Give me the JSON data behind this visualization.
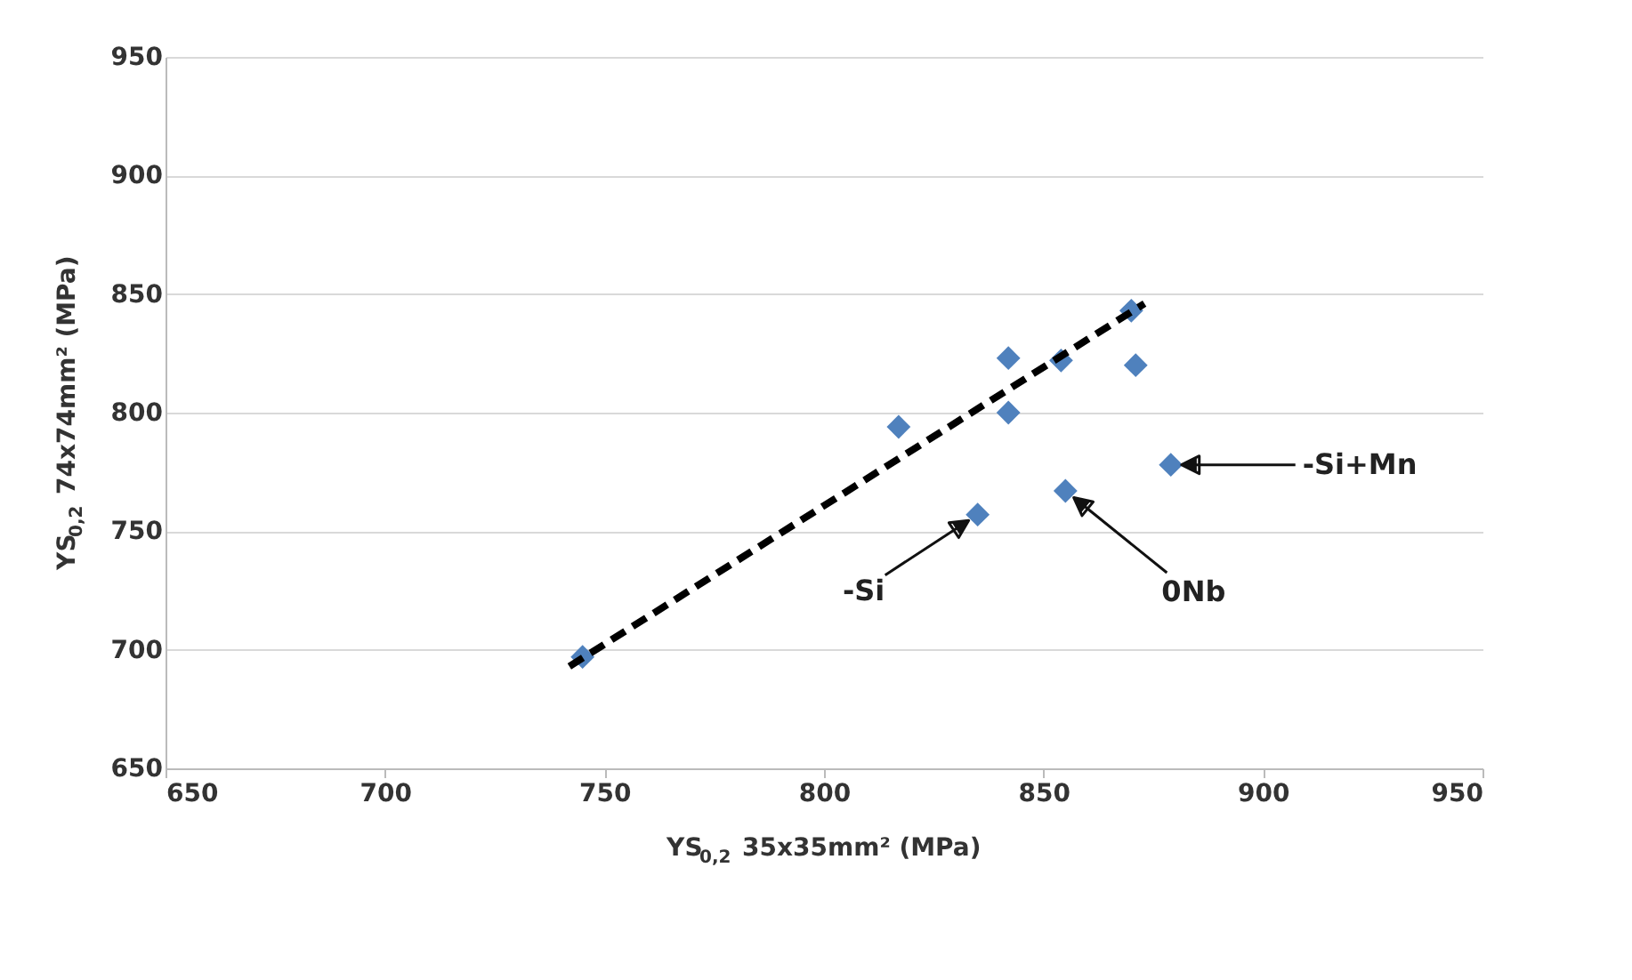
{
  "chart_data": {
    "type": "scatter",
    "xlabel": "YS$_{0,2}$ 35x35mm² (MPa)",
    "ylabel": "YS$_{0,2}$ 74x74mm² (MPa)",
    "xlim": [
      650,
      950
    ],
    "xticks": [
      650,
      700,
      750,
      800,
      850,
      900,
      950
    ],
    "ylim": [
      650,
      950
    ],
    "yticks": [
      650,
      700,
      750,
      800,
      850,
      900,
      950
    ],
    "grid": "y",
    "marker": "diamond",
    "series": [
      {
        "type": "scatter",
        "color": "#4f81bd",
        "x": [
          745,
          817,
          842,
          842,
          854,
          870,
          871,
          879,
          855,
          835
        ],
        "values": [
          697,
          794,
          823,
          800,
          822,
          843,
          820,
          778,
          767,
          757
        ]
      },
      {
        "type": "line",
        "color": "#000000",
        "line_style": "dashed",
        "marker": "none",
        "x": [
          742,
          873
        ],
        "values": [
          693,
          846
        ]
      }
    ],
    "annotations": [
      {
        "text": "-Si",
        "x": 835,
        "y": 757
      },
      {
        "text": "0Nb",
        "x": 855,
        "y": 767
      },
      {
        "text": "-Si+Mn",
        "x": 879,
        "y": 778
      }
    ]
  }
}
